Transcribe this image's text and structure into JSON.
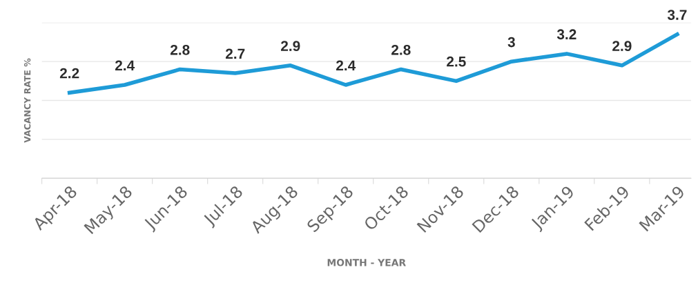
{
  "chart_data": {
    "type": "line",
    "xlabel": "MONTH - YEAR",
    "ylabel": "VACANCY RATE %",
    "categories": [
      "Apr-18",
      "May-18",
      "Jun-18",
      "Jul-18",
      "Aug-18",
      "Sep-18",
      "Oct-18",
      "Nov-18",
      "Dec-18",
      "Jan-19",
      "Feb-19",
      "Mar-19"
    ],
    "series": [
      {
        "color": "#1e9bd7",
        "values": [
          2.2,
          2.4,
          2.8,
          2.7,
          2.9,
          2.4,
          2.8,
          2.5,
          3,
          3.2,
          2.9,
          3.7
        ]
      }
    ],
    "data_labels": true,
    "ylim": [
      0,
      4
    ],
    "yticks": [
      {
        "value": 0,
        "label": null
      },
      {
        "value": 1,
        "label": null
      },
      {
        "value": 2,
        "label": null
      },
      {
        "value": 3,
        "label": null
      },
      {
        "value": 4,
        "label": null
      }
    ],
    "tick_labels": "x",
    "grid": "y",
    "legend": false,
    "marker": "none",
    "line_style": "solid"
  }
}
